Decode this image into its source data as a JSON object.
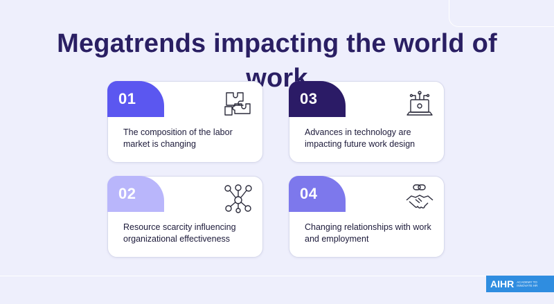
{
  "title": "Megatrends impacting the world of work",
  "colors": {
    "background": "#eeeffc",
    "title": "#2a1f63",
    "tab_01": "#5b57f0",
    "tab_02": "#b9b6fb",
    "tab_03": "#2b1b66",
    "tab_04": "#7d78ec",
    "logo": "#2f8de0"
  },
  "cards": [
    {
      "number": "01",
      "text": "The composition of the labor market is changing",
      "icon": "puzzle-pieces-icon"
    },
    {
      "number": "02",
      "text": "Resource scarcity influencing organizational effectiveness",
      "icon": "resource-network-icon"
    },
    {
      "number": "03",
      "text": "Advances in technology are impacting future work design",
      "icon": "laptop-circuit-icon"
    },
    {
      "number": "04",
      "text": "Changing relationships with work and employment",
      "icon": "handshake-icon"
    }
  ],
  "logo": {
    "main": "AIHR",
    "sub": "Academy to Innovate HR"
  }
}
